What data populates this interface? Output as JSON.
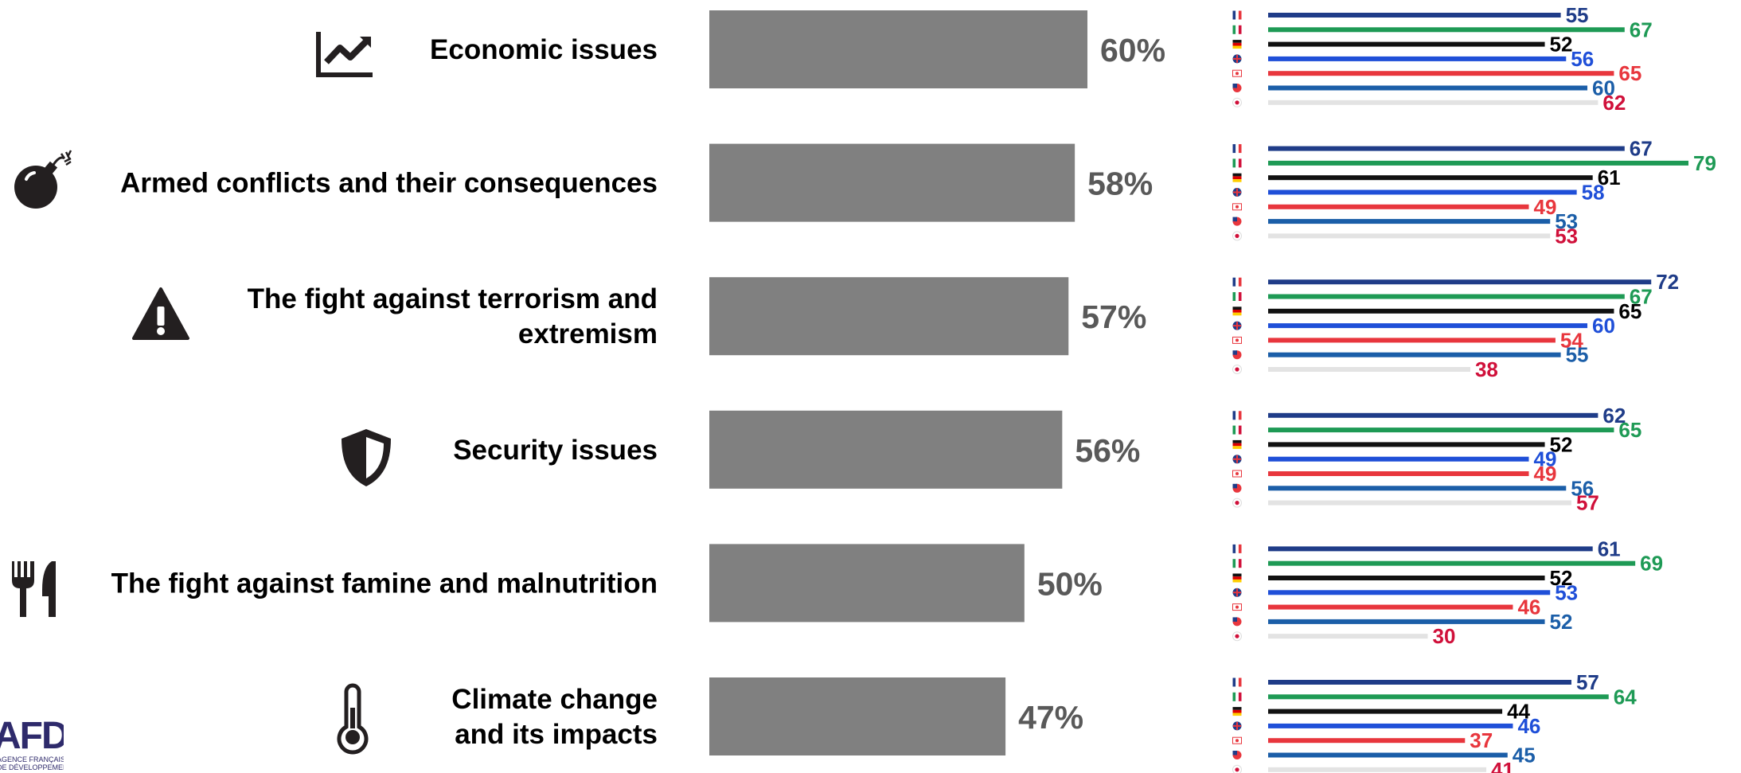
{
  "chart_data": {
    "type": "bar",
    "value_suffix": "%",
    "categories": [
      {
        "label_lines": [
          "Economic issues"
        ],
        "icon": "chart-trend-icon"
      },
      {
        "label_lines": [
          "Armed conflicts and their consequences"
        ],
        "icon": "bomb-icon"
      },
      {
        "label_lines": [
          "The fight against terrorism and",
          "extremism"
        ],
        "icon": "warning-icon"
      },
      {
        "label_lines": [
          "Security issues"
        ],
        "icon": "shield-icon"
      },
      {
        "label_lines": [
          "The fight against famine and malnutrition"
        ],
        "icon": "fork-knife-icon"
      },
      {
        "label_lines": [
          "Climate change",
          "and its impacts"
        ],
        "icon": "thermometer-icon"
      }
    ],
    "values": [
      60,
      58,
      57,
      56,
      50,
      47
    ],
    "xlim": [
      0,
      100
    ],
    "country_series": [
      {
        "flag": "france-flag-icon",
        "bar_color": "#1F3C88",
        "label_color": "#1F3C88",
        "values": [
          55,
          67,
          72,
          62,
          61,
          57
        ]
      },
      {
        "flag": "italy-flag-icon",
        "bar_color": "#1E9A55",
        "label_color": "#1E9A55",
        "values": [
          67,
          79,
          67,
          65,
          69,
          64
        ]
      },
      {
        "flag": "germany-flag-icon",
        "bar_color": "#111111",
        "label_color": "#000000",
        "values": [
          52,
          61,
          65,
          52,
          52,
          44
        ]
      },
      {
        "flag": "uk-flag-icon",
        "bar_color": "#1F4FD8",
        "label_color": "#1F4FD8",
        "values": [
          56,
          58,
          60,
          49,
          53,
          46
        ]
      },
      {
        "flag": "canada-flag-icon",
        "bar_color": "#E8363D",
        "label_color": "#E8363D",
        "values": [
          65,
          49,
          54,
          49,
          46,
          37
        ]
      },
      {
        "flag": "usa-flag-icon",
        "bar_color": "#1B5EA8",
        "label_color": "#1B5EA8",
        "values": [
          60,
          53,
          55,
          56,
          52,
          45
        ]
      },
      {
        "flag": "japan-flag-icon",
        "bar_color": "#E3E3E3",
        "label_color": "#D0103A",
        "values": [
          62,
          53,
          38,
          57,
          30,
          41
        ]
      }
    ],
    "colors": {
      "main_bar": "#808080",
      "main_value": "#595959",
      "category_text": "#000000",
      "icon": "#231F20"
    }
  },
  "logo": {
    "main": "AFD",
    "sub1": "AGENCE FRANÇAISE",
    "sub2": "DE DÉVELOPPEMENT"
  }
}
